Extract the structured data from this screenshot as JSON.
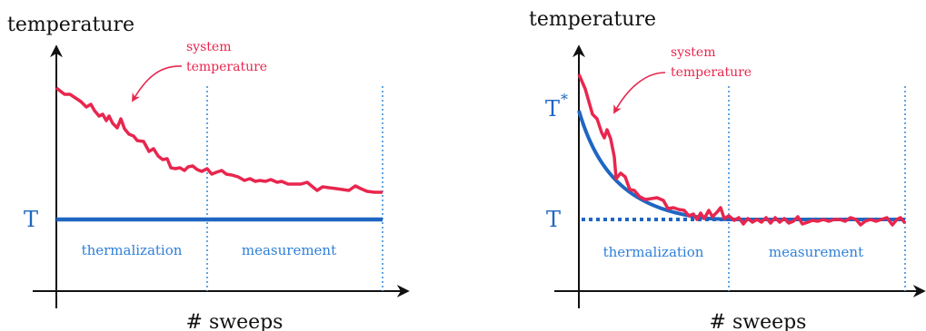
{
  "colors": {
    "system": "#e8264e",
    "reference": "#1f66c2",
    "divider": "#3b8fdb",
    "phase_text": "#2f80d8",
    "axis": "#111111"
  },
  "left_panel": {
    "y_axis_label": "temperature",
    "x_axis_label": "# sweeps",
    "reference_label": "T",
    "annotation_line1": "system",
    "annotation_line2": "temperature",
    "phase_thermalization": "thermalization",
    "phase_measurement": "measurement"
  },
  "right_panel": {
    "y_axis_label": "temperature",
    "x_axis_label": "# sweeps",
    "reference_label": "T",
    "start_label": "T",
    "start_label_sup": "*",
    "annotation_line1": "system",
    "annotation_line2": "temperature",
    "phase_thermalization": "thermalization",
    "phase_measurement": "measurement"
  },
  "chart_data": [
    {
      "type": "line",
      "series": [
        {
          "values": [
            1.0,
            0.98,
            0.97,
            0.95,
            0.92,
            0.89,
            0.88,
            0.86,
            0.83,
            0.8,
            0.78,
            0.76,
            0.74,
            0.71,
            0.69,
            0.67,
            0.65,
            0.63,
            0.61,
            0.59,
            0.58,
            0.56,
            0.55,
            0.54,
            0.53,
            0.52,
            0.51,
            0.5,
            0.5,
            0.49,
            0.48,
            0.48,
            0.47,
            0.47,
            0.46,
            0.46,
            0.45,
            0.45,
            0.44,
            0.44,
            0.43
          ]
        },
        {
          "values": [
            0.2,
            0.2
          ]
        }
      ],
      "xlabel": "# sweeps",
      "ylabel": "temperature"
    },
    {
      "type": "line",
      "series": [
        {
          "values": [
            1.0,
            0.92,
            0.83,
            0.76,
            0.69,
            0.62,
            0.56,
            0.51,
            0.47,
            0.44,
            0.41,
            0.39,
            0.37,
            0.35,
            0.34,
            0.33,
            0.32,
            0.31,
            0.31,
            0.3,
            0.3,
            0.3,
            0.3,
            0.3,
            0.3,
            0.3,
            0.3,
            0.3,
            0.3,
            0.3,
            0.3,
            0.3,
            0.3,
            0.3,
            0.3,
            0.3,
            0.3,
            0.3,
            0.3,
            0.3,
            0.3
          ]
        },
        {
          "values": [
            0.92,
            0.3
          ]
        },
        {
          "values": [
            0.3,
            0.3
          ]
        }
      ],
      "xlabel": "# sweeps",
      "ylabel": "temperature"
    }
  ]
}
